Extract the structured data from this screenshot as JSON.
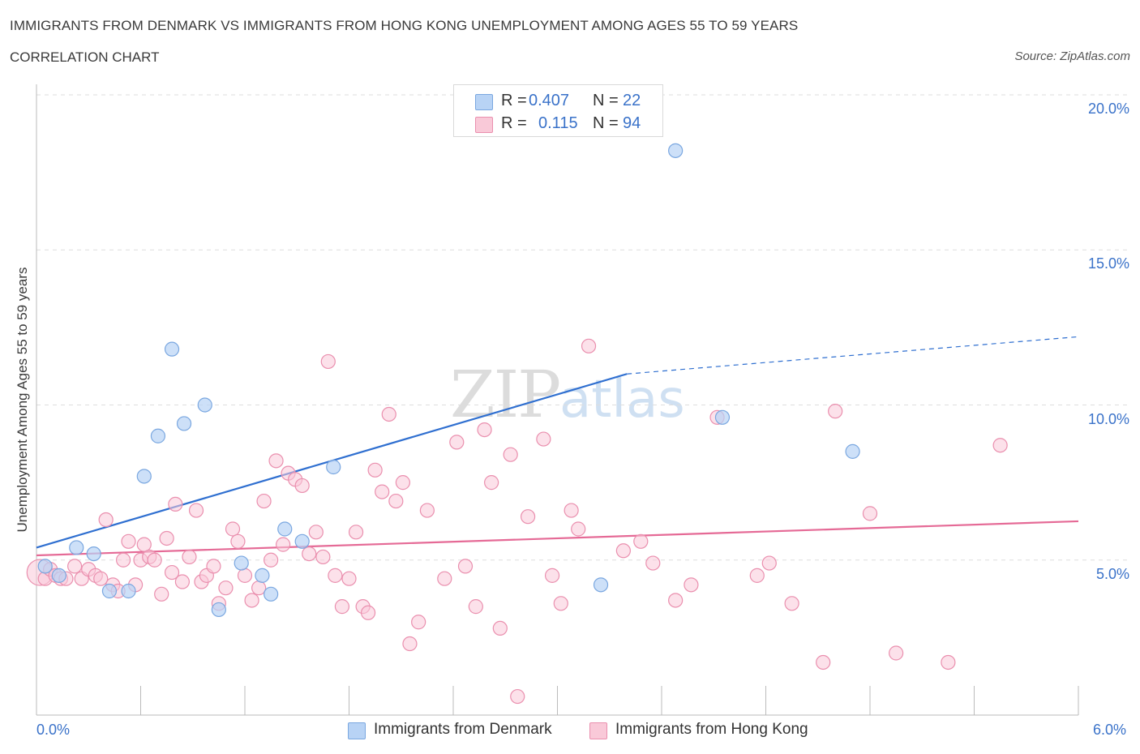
{
  "header": {
    "title": "IMMIGRANTS FROM DENMARK VS IMMIGRANTS FROM HONG KONG UNEMPLOYMENT AMONG AGES 55 TO 59 YEARS",
    "subtitle": "CORRELATION CHART",
    "source": "Source: ZipAtlas.com"
  },
  "watermark": {
    "zip": "ZIP",
    "atlas": "atlas"
  },
  "colors": {
    "denmark_fill": "#b8d3f5",
    "denmark_stroke": "#7aa7e0",
    "denmark_line": "#2f6fd0",
    "hongkong_fill": "#f9c9d8",
    "hongkong_stroke": "#ea8fae",
    "hongkong_line": "#e56a96",
    "tick_text": "#3a72c9",
    "grid": "#dddddd"
  },
  "legend_top": {
    "rows": [
      {
        "r_label": "R =",
        "r_value": "0.407",
        "n_label": "N =",
        "n_value": "22"
      },
      {
        "r_label": "R =",
        "r_value": "0.115",
        "n_label": "N =",
        "n_value": "94"
      }
    ]
  },
  "legend_bottom": {
    "denmark": "Immigrants from Denmark",
    "hongkong": "Immigrants from Hong Kong"
  },
  "chart_data": {
    "type": "scatter",
    "title": "IMMIGRANTS FROM DENMARK VS IMMIGRANTS FROM HONG KONG UNEMPLOYMENT AMONG AGES 55 TO 59 YEARS",
    "xlabel": "",
    "ylabel": "Unemployment Among Ages 55 to 59 years",
    "xlim": [
      0,
      6
    ],
    "ylim": [
      0,
      20
    ],
    "x_tick_labels": [
      "0.0%",
      "6.0%"
    ],
    "y_ticks": [
      5,
      10,
      15,
      20
    ],
    "y_tick_labels": [
      "5.0%",
      "10.0%",
      "15.0%",
      "20.0%"
    ],
    "grid": true,
    "legend_position": "top-center",
    "series": [
      {
        "name": "Immigrants from Denmark",
        "R": 0.407,
        "N": 22,
        "trend": {
          "x0": 0.0,
          "y0": 5.4,
          "x1": 3.4,
          "y1": 11.0,
          "dash_to_x": 6.0,
          "dash_to_y": 12.2
        },
        "points": [
          [
            0.05,
            4.8
          ],
          [
            0.13,
            4.5
          ],
          [
            0.23,
            5.4
          ],
          [
            0.33,
            5.2
          ],
          [
            0.42,
            4.0
          ],
          [
            0.53,
            4.0
          ],
          [
            0.62,
            7.7
          ],
          [
            0.7,
            9.0
          ],
          [
            0.78,
            11.8
          ],
          [
            0.85,
            9.4
          ],
          [
            0.97,
            10.0
          ],
          [
            1.05,
            3.4
          ],
          [
            1.18,
            4.9
          ],
          [
            1.3,
            4.5
          ],
          [
            1.35,
            3.9
          ],
          [
            1.43,
            6.0
          ],
          [
            1.53,
            5.6
          ],
          [
            1.71,
            8.0
          ],
          [
            3.25,
            4.2
          ],
          [
            3.68,
            18.2
          ],
          [
            3.95,
            9.6
          ],
          [
            4.7,
            8.5
          ]
        ]
      },
      {
        "name": "Immigrants from Hong Kong",
        "R": 0.115,
        "N": 94,
        "trend": {
          "x0": 0.0,
          "y0": 5.15,
          "x1": 6.0,
          "y1": 6.25
        },
        "points": [
          [
            0.02,
            4.6
          ],
          [
            0.05,
            4.4
          ],
          [
            0.08,
            4.7
          ],
          [
            0.11,
            4.5
          ],
          [
            0.14,
            4.4
          ],
          [
            0.17,
            4.4
          ],
          [
            0.22,
            4.8
          ],
          [
            0.26,
            4.4
          ],
          [
            0.3,
            4.7
          ],
          [
            0.34,
            4.5
          ],
          [
            0.37,
            4.4
          ],
          [
            0.4,
            6.3
          ],
          [
            0.44,
            4.2
          ],
          [
            0.47,
            4.0
          ],
          [
            0.5,
            5.0
          ],
          [
            0.53,
            5.6
          ],
          [
            0.57,
            4.2
          ],
          [
            0.6,
            5.0
          ],
          [
            0.62,
            5.5
          ],
          [
            0.65,
            5.1
          ],
          [
            0.68,
            5.0
          ],
          [
            0.72,
            3.9
          ],
          [
            0.75,
            5.7
          ],
          [
            0.78,
            4.6
          ],
          [
            0.8,
            6.8
          ],
          [
            0.84,
            4.3
          ],
          [
            0.88,
            5.1
          ],
          [
            0.92,
            6.6
          ],
          [
            0.95,
            4.3
          ],
          [
            0.98,
            4.5
          ],
          [
            1.02,
            4.8
          ],
          [
            1.05,
            3.6
          ],
          [
            1.09,
            4.1
          ],
          [
            1.13,
            6.0
          ],
          [
            1.16,
            5.6
          ],
          [
            1.2,
            4.5
          ],
          [
            1.24,
            3.7
          ],
          [
            1.28,
            4.1
          ],
          [
            1.31,
            6.9
          ],
          [
            1.35,
            5.0
          ],
          [
            1.38,
            8.2
          ],
          [
            1.42,
            5.5
          ],
          [
            1.45,
            7.8
          ],
          [
            1.49,
            7.6
          ],
          [
            1.53,
            7.4
          ],
          [
            1.57,
            5.2
          ],
          [
            1.61,
            5.9
          ],
          [
            1.65,
            5.1
          ],
          [
            1.68,
            11.4
          ],
          [
            1.72,
            4.5
          ],
          [
            1.76,
            3.5
          ],
          [
            1.8,
            4.4
          ],
          [
            1.84,
            5.9
          ],
          [
            1.88,
            3.5
          ],
          [
            1.91,
            3.3
          ],
          [
            1.95,
            7.9
          ],
          [
            1.99,
            7.2
          ],
          [
            2.03,
            9.7
          ],
          [
            2.07,
            6.9
          ],
          [
            2.11,
            7.5
          ],
          [
            2.15,
            2.3
          ],
          [
            2.2,
            3.0
          ],
          [
            2.25,
            6.6
          ],
          [
            2.35,
            4.4
          ],
          [
            2.42,
            8.8
          ],
          [
            2.47,
            4.8
          ],
          [
            2.53,
            3.5
          ],
          [
            2.58,
            9.2
          ],
          [
            2.62,
            7.5
          ],
          [
            2.67,
            2.8
          ],
          [
            2.73,
            8.4
          ],
          [
            2.77,
            0.6
          ],
          [
            2.83,
            6.4
          ],
          [
            2.92,
            8.9
          ],
          [
            2.97,
            4.5
          ],
          [
            3.02,
            3.6
          ],
          [
            3.08,
            6.6
          ],
          [
            3.12,
            6.0
          ],
          [
            3.18,
            11.9
          ],
          [
            3.38,
            5.3
          ],
          [
            3.48,
            5.6
          ],
          [
            3.55,
            4.9
          ],
          [
            3.68,
            3.7
          ],
          [
            3.77,
            4.2
          ],
          [
            3.92,
            9.6
          ],
          [
            4.15,
            4.5
          ],
          [
            4.22,
            4.9
          ],
          [
            4.35,
            3.6
          ],
          [
            4.53,
            1.7
          ],
          [
            4.6,
            9.8
          ],
          [
            4.8,
            6.5
          ],
          [
            4.95,
            2.0
          ],
          [
            5.25,
            1.7
          ],
          [
            5.55,
            8.7
          ]
        ]
      }
    ]
  }
}
